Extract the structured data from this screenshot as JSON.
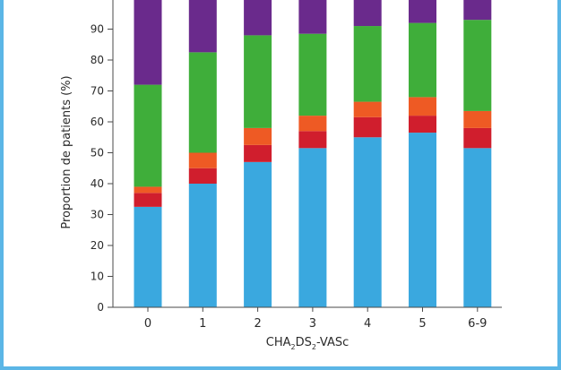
{
  "chart_data": {
    "type": "bar",
    "stacked": true,
    "title": "",
    "ylabel": "Proportion de patients (%)",
    "xlabel": {
      "base": "CHA",
      "sub1": "2",
      "mid": "DS",
      "sub2": "2",
      "tail": "-VASc"
    },
    "categories": [
      "0",
      "1",
      "2",
      "3",
      "4",
      "5",
      "6-9"
    ],
    "y_ticks": [
      "0",
      "10",
      "20",
      "30",
      "40",
      "50",
      "60",
      "70",
      "80",
      "90"
    ],
    "ylim": [
      0,
      100
    ],
    "grid": false,
    "legend": "none",
    "series": [
      {
        "color": "#3aa8df",
        "values": [
          32.5,
          40,
          47,
          51.5,
          55,
          56.5,
          51.5
        ]
      },
      {
        "color": "#d01e2d",
        "values": [
          4.5,
          5,
          5.5,
          5.5,
          6.5,
          5.5,
          6.5
        ]
      },
      {
        "color": "#ee5a24",
        "values": [
          2,
          5,
          5.5,
          5,
          5,
          6,
          5.5
        ]
      },
      {
        "color": "#3fae3a",
        "values": [
          33,
          32.5,
          30,
          26.5,
          24.5,
          24,
          29.5
        ]
      },
      {
        "color": "#6a2a8c",
        "values": [
          28,
          17.5,
          12,
          11.5,
          9,
          8,
          7
        ]
      }
    ]
  }
}
